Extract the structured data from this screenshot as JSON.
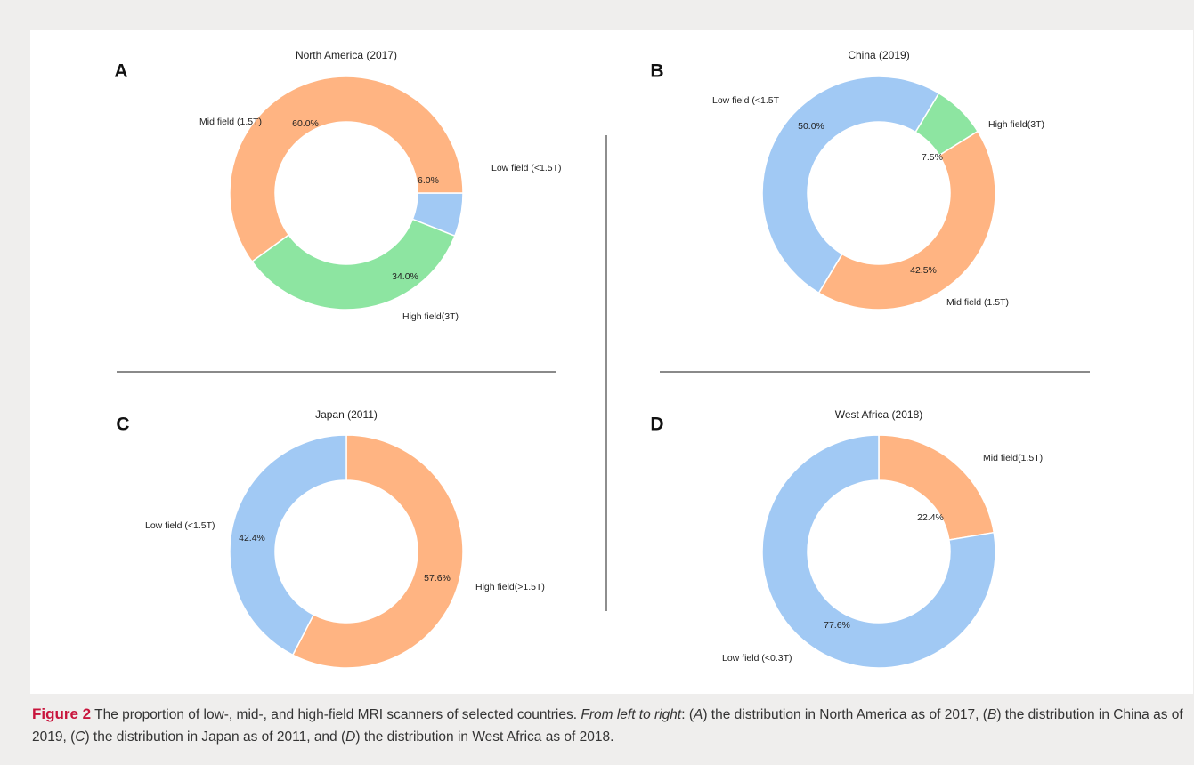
{
  "colors": {
    "low": "#a1c9f4",
    "mid": "#ffb482",
    "high": "#8de5a1",
    "caption_accent": "#c8143c"
  },
  "chart_data": [
    {
      "type": "pie",
      "panel": "A",
      "title": "North America (2017)",
      "slices": [
        {
          "label": "Low field (<1.5T)",
          "value": 6.0,
          "pct_label": "6.0%",
          "color_key": "low"
        },
        {
          "label": "High field(3T)",
          "value": 34.0,
          "pct_label": "34.0%",
          "color_key": "high"
        },
        {
          "label": "Mid field (1.5T)",
          "value": 60.0,
          "pct_label": "60.0%",
          "color_key": "mid"
        }
      ]
    },
    {
      "type": "pie",
      "panel": "B",
      "title": "China (2019)",
      "slices": [
        {
          "label": "High field(3T)",
          "value": 7.5,
          "pct_label": "7.5%",
          "color_key": "high"
        },
        {
          "label": "Mid field (1.5T)",
          "value": 42.5,
          "pct_label": "42.5%",
          "color_key": "mid"
        },
        {
          "label": "Low field (<1.5T",
          "value": 50.0,
          "pct_label": "50.0%",
          "color_key": "low"
        }
      ]
    },
    {
      "type": "pie",
      "panel": "C",
      "title": "Japan (2011)",
      "slices": [
        {
          "label": "High field(>1.5T)",
          "value": 57.6,
          "pct_label": "57.6%",
          "color_key": "mid"
        },
        {
          "label": "Low field (<1.5T)",
          "value": 42.4,
          "pct_label": "42.4%",
          "color_key": "low"
        }
      ]
    },
    {
      "type": "pie",
      "panel": "D",
      "title": "West Africa (2018)",
      "slices": [
        {
          "label": "Mid field(1.5T)",
          "value": 22.4,
          "pct_label": "22.4%",
          "color_key": "mid"
        },
        {
          "label": "Low field (<0.3T)",
          "value": 77.6,
          "pct_label": "77.6%",
          "color_key": "low"
        }
      ]
    }
  ],
  "caption": {
    "label": "Figure 2",
    "text_1": " The proportion of low-, mid-, and high-field MRI scanners of selected countries. ",
    "emph": "From left to right",
    "text_2": ": (",
    "a": "A",
    "text_3": ") the distribution in North America as of 2017, (",
    "b": "B",
    "text_4": ") the distribution in China as of 2019, (",
    "c": "C",
    "text_5": ") the distribution in Japan as of 2011, and (",
    "d": "D",
    "text_6": ") the distribution in West Africa as of 2018."
  }
}
